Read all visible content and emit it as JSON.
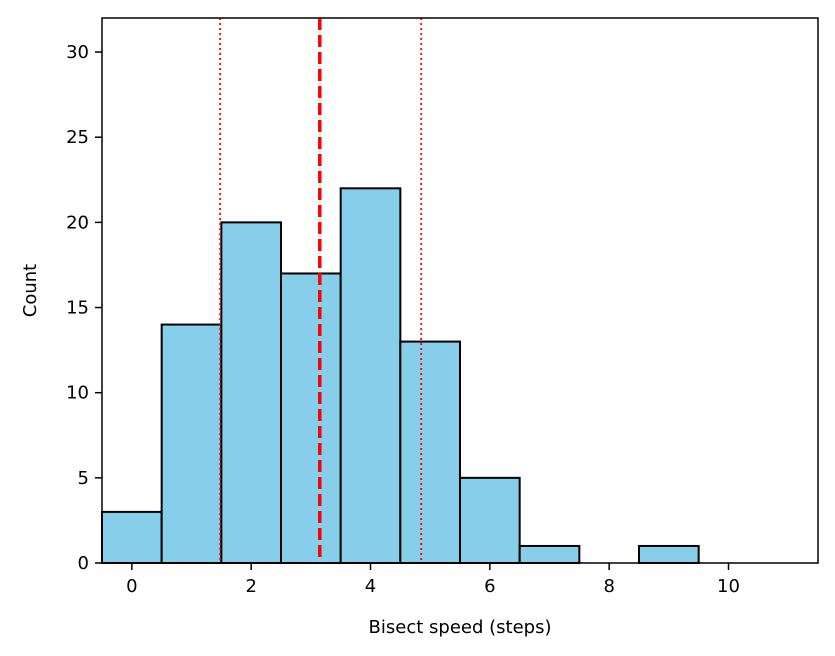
{
  "chart_data": {
    "type": "bar",
    "title": "",
    "xlabel": "Bisect speed (steps)",
    "ylabel": "Count",
    "xlim": [
      -0.5,
      11.5
    ],
    "ylim": [
      0,
      32
    ],
    "xticks": [
      0,
      2,
      4,
      6,
      8,
      10
    ],
    "yticks": [
      0,
      5,
      10,
      15,
      20,
      25,
      30
    ],
    "bin_width": 1,
    "bins": [
      {
        "x": 0,
        "count": 3
      },
      {
        "x": 1,
        "count": 14
      },
      {
        "x": 2,
        "count": 20
      },
      {
        "x": 3,
        "count": 17
      },
      {
        "x": 4,
        "count": 22
      },
      {
        "x": 5,
        "count": 13
      },
      {
        "x": 6,
        "count": 5
      },
      {
        "x": 7,
        "count": 1
      },
      {
        "x": 8,
        "count": 0
      },
      {
        "x": 9,
        "count": 1
      },
      {
        "x": 10,
        "count": 0
      },
      {
        "x": 11,
        "count": 0
      }
    ],
    "bar_color": "#87ceeb",
    "bar_edge_color": "#000000",
    "reference_lines": [
      {
        "x": 3.15,
        "style": "dashed",
        "color": "#ff0000"
      },
      {
        "x": 1.48,
        "style": "dotted",
        "color": "#ff0000"
      },
      {
        "x": 4.85,
        "style": "dotted",
        "color": "#ff0000"
      }
    ],
    "grid": false,
    "legend": "none"
  }
}
